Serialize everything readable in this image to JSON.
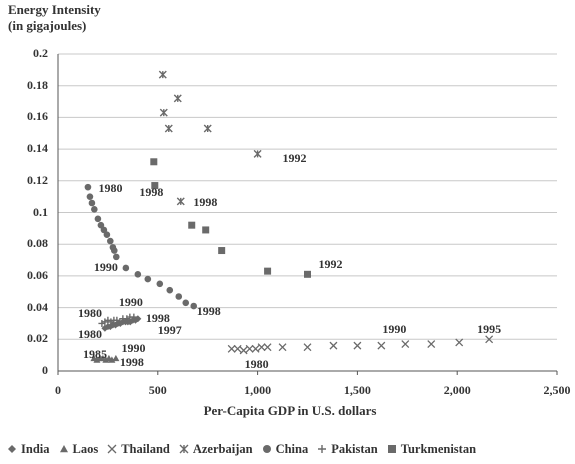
{
  "chart_data": {
    "type": "scatter",
    "title": "",
    "ylabel": "Energy Intensity\n(in gigajoules)",
    "xlabel": "Per-Capita GDP in U.S. dollars",
    "xlim": [
      0,
      2500
    ],
    "ylim": [
      0,
      0.2
    ],
    "x_ticks": [
      "0",
      "500",
      "1,000",
      "1,500",
      "2,000",
      "2,500"
    ],
    "y_ticks": [
      "0",
      "0.02",
      "0.04",
      "0.06",
      "0.08",
      "0.1",
      "0.12",
      "0.14",
      "0.16",
      "0.18",
      "0.2"
    ],
    "grid": true,
    "legend_position": "bottom",
    "series": [
      {
        "name": "India",
        "marker": "diamond",
        "points": [
          [
            235,
            0.027
          ],
          [
            250,
            0.028
          ],
          [
            262,
            0.028
          ],
          [
            275,
            0.029
          ],
          [
            288,
            0.029
          ],
          [
            300,
            0.03
          ],
          [
            312,
            0.03
          ],
          [
            325,
            0.031
          ],
          [
            338,
            0.031
          ],
          [
            350,
            0.031
          ],
          [
            362,
            0.031
          ],
          [
            375,
            0.032
          ],
          [
            388,
            0.032
          ],
          [
            400,
            0.033
          ]
        ]
      },
      {
        "name": "Laos",
        "marker": "triangle",
        "points": [
          [
            180,
            0.008
          ],
          [
            195,
            0.007
          ],
          [
            210,
            0.008
          ],
          [
            225,
            0.008
          ],
          [
            240,
            0.007
          ],
          [
            255,
            0.008
          ],
          [
            270,
            0.007
          ],
          [
            290,
            0.008
          ]
        ]
      },
      {
        "name": "Thailand",
        "marker": "x",
        "points": [
          [
            870,
            0.014
          ],
          [
            900,
            0.014
          ],
          [
            930,
            0.013
          ],
          [
            960,
            0.014
          ],
          [
            990,
            0.014
          ],
          [
            1020,
            0.015
          ],
          [
            1050,
            0.015
          ],
          [
            1125,
            0.015
          ],
          [
            1250,
            0.015
          ],
          [
            1380,
            0.016
          ],
          [
            1500,
            0.016
          ],
          [
            1620,
            0.016
          ],
          [
            1740,
            0.017
          ],
          [
            1870,
            0.017
          ],
          [
            2010,
            0.018
          ],
          [
            2160,
            0.02
          ]
        ]
      },
      {
        "name": "Azerbaijan",
        "marker": "star",
        "points": [
          [
            525,
            0.187
          ],
          [
            530,
            0.163
          ],
          [
            555,
            0.153
          ],
          [
            600,
            0.172
          ],
          [
            615,
            0.107
          ],
          [
            750,
            0.153
          ],
          [
            1000,
            0.137
          ]
        ]
      },
      {
        "name": "China",
        "marker": "circle",
        "points": [
          [
            150,
            0.116
          ],
          [
            160,
            0.11
          ],
          [
            170,
            0.106
          ],
          [
            182,
            0.102
          ],
          [
            200,
            0.096
          ],
          [
            215,
            0.092
          ],
          [
            230,
            0.089
          ],
          [
            245,
            0.086
          ],
          [
            262,
            0.082
          ],
          [
            275,
            0.078
          ],
          [
            282,
            0.076
          ],
          [
            292,
            0.072
          ],
          [
            340,
            0.065
          ],
          [
            400,
            0.061
          ],
          [
            450,
            0.058
          ],
          [
            510,
            0.055
          ],
          [
            560,
            0.051
          ],
          [
            605,
            0.047
          ],
          [
            640,
            0.043
          ],
          [
            680,
            0.041
          ]
        ]
      },
      {
        "name": "Pakistan",
        "marker": "plus",
        "points": [
          [
            220,
            0.03
          ],
          [
            235,
            0.031
          ],
          [
            250,
            0.032
          ],
          [
            265,
            0.031
          ],
          [
            280,
            0.032
          ],
          [
            295,
            0.032
          ],
          [
            310,
            0.031
          ],
          [
            325,
            0.033
          ],
          [
            345,
            0.033
          ],
          [
            360,
            0.034
          ],
          [
            380,
            0.034
          ]
        ]
      },
      {
        "name": "Turkmenistan",
        "marker": "square",
        "points": [
          [
            480,
            0.132
          ],
          [
            485,
            0.117
          ],
          [
            670,
            0.092
          ],
          [
            740,
            0.089
          ],
          [
            820,
            0.076
          ],
          [
            1050,
            0.063
          ],
          [
            1250,
            0.061
          ]
        ]
      }
    ],
    "annotations": [
      {
        "text": "1980",
        "x": 203,
        "y": 0.115
      },
      {
        "text": "1998",
        "x": 408,
        "y": 0.112
      },
      {
        "text": "1998",
        "x": 678,
        "y": 0.106
      },
      {
        "text": "1992",
        "x": 1125,
        "y": 0.134
      },
      {
        "text": "1992",
        "x": 1305,
        "y": 0.067
      },
      {
        "text": "1990",
        "x": 180,
        "y": 0.065
      },
      {
        "text": "1998",
        "x": 695,
        "y": 0.037
      },
      {
        "text": "1980",
        "x": 100,
        "y": 0.036
      },
      {
        "text": "1990",
        "x": 305,
        "y": 0.043
      },
      {
        "text": "1980",
        "x": 100,
        "y": 0.023
      },
      {
        "text": "1997",
        "x": 500,
        "y": 0.025
      },
      {
        "text": "1998",
        "x": 440,
        "y": 0.033
      },
      {
        "text": "1990",
        "x": 318,
        "y": 0.014
      },
      {
        "text": "1985",
        "x": 125,
        "y": 0.01
      },
      {
        "text": "1998",
        "x": 310,
        "y": 0.005
      },
      {
        "text": "1980",
        "x": 935,
        "y": 0.004
      },
      {
        "text": "1990",
        "x": 1625,
        "y": 0.026
      },
      {
        "text": "1995",
        "x": 2100,
        "y": 0.026
      }
    ]
  }
}
